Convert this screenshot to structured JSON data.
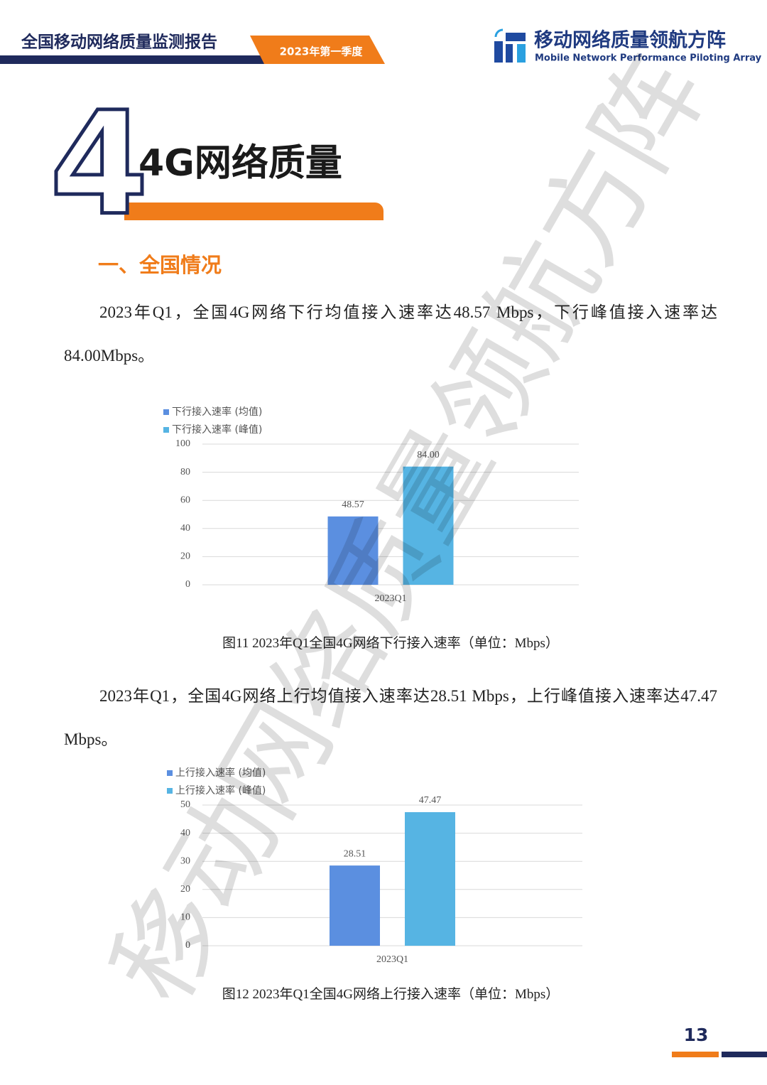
{
  "header": {
    "report_title": "全国移动网络质量监测报告",
    "period": "2023年第一季度",
    "brand_cn": "移动网络质量领航方阵",
    "brand_en": "Mobile Network Performance Piloting Array"
  },
  "chapter": {
    "number": "4",
    "title": "4G网络质量"
  },
  "section_title": "一、全国情况",
  "paragraphs": [
    "2023年Q1，全国4G网络下行均值接入速率达48.57 Mbps，下行峰值接入速率达84.00Mbps。",
    "2023年Q1，全国4G网络上行均值接入速率达28.51 Mbps，上行峰值接入速率达47.47 Mbps。"
  ],
  "chart_data": [
    {
      "type": "bar",
      "categories": [
        "2023Q1"
      ],
      "series": [
        {
          "name": "下行接入速率 (均值)",
          "color": "#5b8fe0",
          "values": [
            48.57
          ]
        },
        {
          "name": "下行接入速率 (峰值)",
          "color": "#56b4e3",
          "values": [
            84
          ],
          "value_labels": [
            "84.00"
          ]
        }
      ],
      "ylim": [
        0,
        100
      ],
      "yticks": [
        0,
        20,
        40,
        60,
        80,
        100
      ],
      "grid": true,
      "caption": "图11 2023年Q1全国4G网络下行接入速率（单位：Mbps）"
    },
    {
      "type": "bar",
      "categories": [
        "2023Q1"
      ],
      "series": [
        {
          "name": "上行接入速率 (均值)",
          "color": "#5b8fe0",
          "values": [
            28.51
          ]
        },
        {
          "name": "上行接入速率 (峰值)",
          "color": "#56b4e3",
          "values": [
            47.47
          ]
        }
      ],
      "ylim": [
        0,
        50
      ],
      "yticks": [
        0,
        10,
        20,
        30,
        40,
        50
      ],
      "grid": true,
      "caption": "图12 2023年Q1全国4G网络上行接入速率（单位：Mbps）"
    }
  ],
  "watermark": "移动网络质量领航方阵",
  "page_number": "13"
}
